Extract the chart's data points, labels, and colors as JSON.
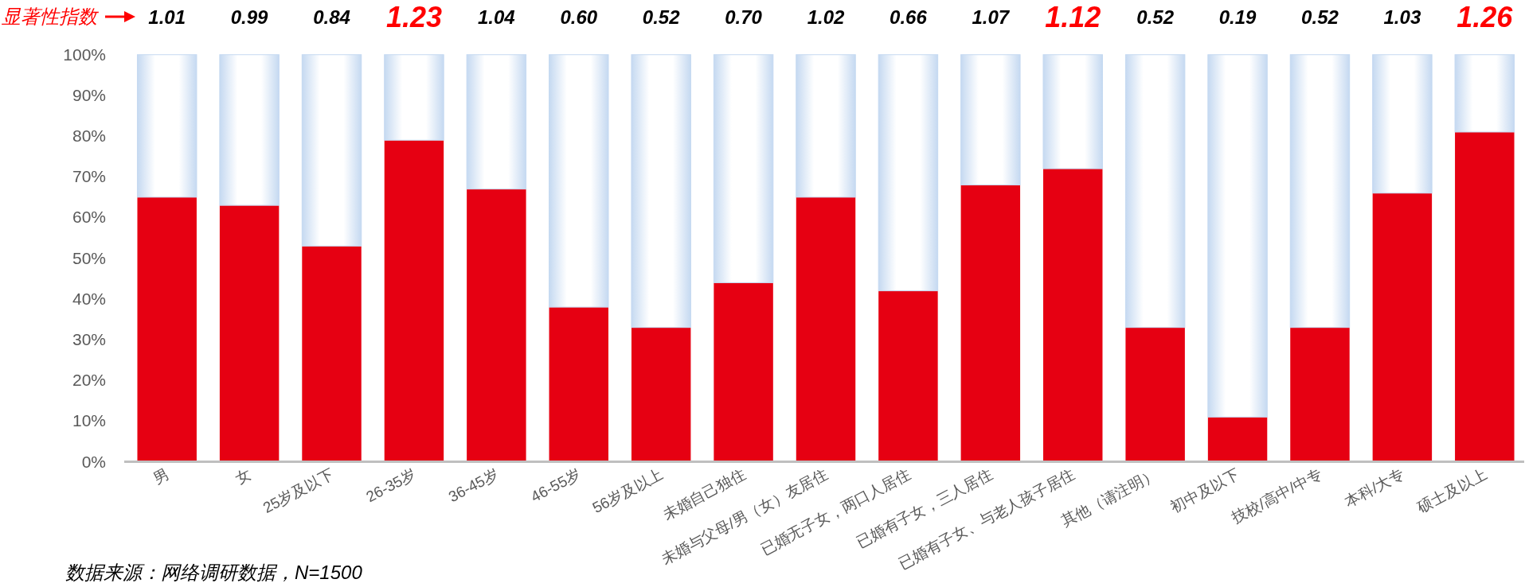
{
  "chart_data": {
    "type": "bar",
    "stacked": true,
    "categories": [
      "男",
      "女",
      "25岁及以下",
      "26-35岁",
      "36-45岁",
      "46-55岁",
      "56岁及以上",
      "未婚自己独住",
      "未婚与父母/男（女）友居住",
      "已婚无子女，两口人居住",
      "已婚有子女，三人居住",
      "已婚有子女、与老人孩子居住",
      "其他（请注明）",
      "初中及以下",
      "技校/高中/中专",
      "本科/大专",
      "硕士及以上"
    ],
    "series": [
      {
        "color": "#e60012",
        "values": [
          65,
          63,
          53,
          79,
          67,
          38,
          33,
          44,
          65,
          42,
          68,
          72,
          33,
          11,
          33,
          66,
          81
        ]
      },
      {
        "color": "#c5d9f1",
        "values": [
          35,
          37,
          47,
          21,
          33,
          62,
          67,
          56,
          35,
          58,
          32,
          28,
          67,
          89,
          67,
          34,
          19
        ]
      }
    ],
    "ylim": [
      0,
      100
    ],
    "yticks": [
      {
        "value": 0,
        "label": "0%"
      },
      {
        "value": 10,
        "label": "10%"
      },
      {
        "value": 20,
        "label": "20%"
      },
      {
        "value": 30,
        "label": "30%"
      },
      {
        "value": 40,
        "label": "40%"
      },
      {
        "value": 50,
        "label": "50%"
      },
      {
        "value": 60,
        "label": "60%"
      },
      {
        "value": 70,
        "label": "70%"
      },
      {
        "value": 80,
        "label": "80%"
      },
      {
        "value": 90,
        "label": "90%"
      },
      {
        "value": 100,
        "label": "100%"
      }
    ],
    "annotations": [
      "显著性指数",
      "1.01",
      "0.99",
      "0.84",
      "1.23",
      "1.04",
      "0.60",
      "0.52",
      "0.70",
      "1.02",
      "0.66",
      "1.07",
      "1.12",
      "0.52",
      "0.19",
      "0.52",
      "1.03",
      "1.26",
      "数据来源：网络调研数据，N=1500"
    ],
    "grid": false
  }
}
